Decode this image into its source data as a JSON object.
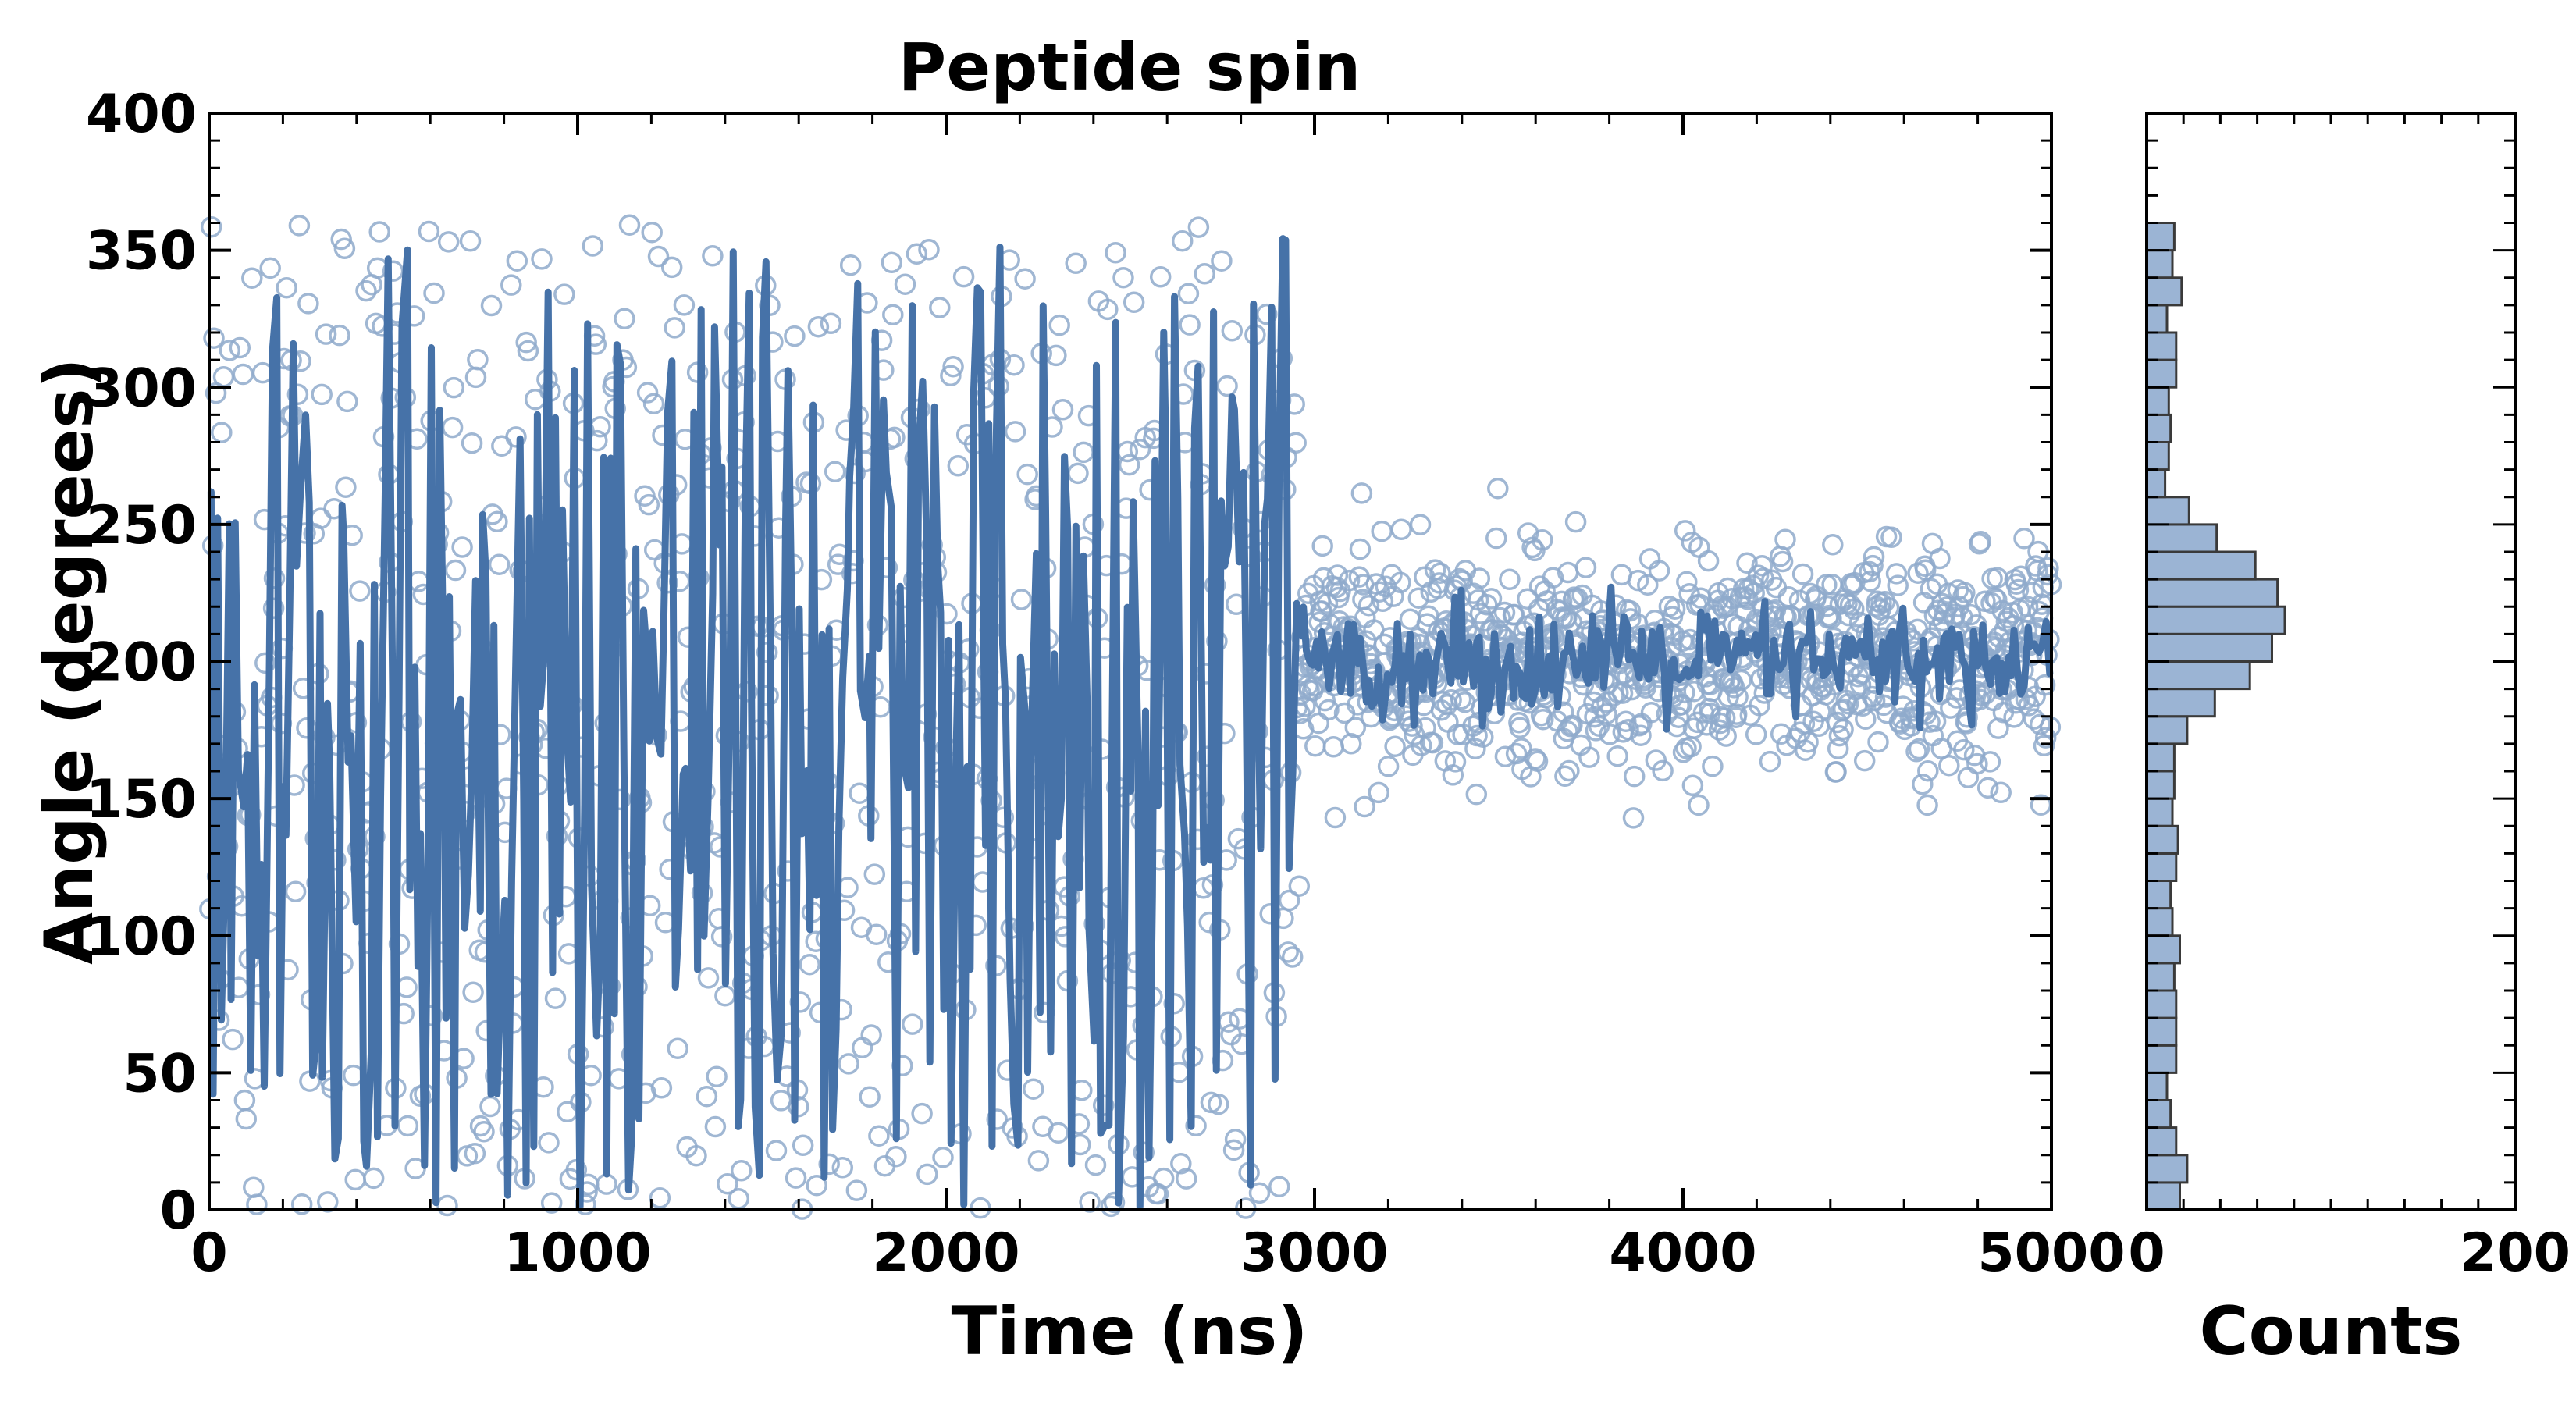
{
  "chart_data": [
    {
      "type": "scatter",
      "title": "Peptide spin",
      "xlabel": "Time (ns)",
      "ylabel": "Angle (degrees)",
      "xlim": [
        0,
        5000
      ],
      "ylim": [
        0,
        400
      ],
      "xticks": [
        0,
        1000,
        2000,
        3000,
        4000,
        5000
      ],
      "yticks": [
        0,
        50,
        100,
        150,
        200,
        250,
        300,
        350,
        400
      ],
      "grid": false,
      "series": [
        {
          "kind": "scatter",
          "marker": "open-circle",
          "color": "#8faacb",
          "regimes": [
            {
              "x_range": [
                0,
                2960
              ],
              "points": 720,
              "distribution": "uniform",
              "y_range": [
                0,
                360
              ]
            },
            {
              "x_range": [
                2960,
                5000
              ],
              "points": 900,
              "distribution": "normal",
              "y_mean": 200,
              "y_sd": 20
            }
          ]
        },
        {
          "kind": "line",
          "color": "#4672a8",
          "regimes": [
            {
              "x_range": [
                0,
                2960
              ],
              "points": 300,
              "distribution": "uniform",
              "y_range": [
                0,
                355
              ]
            },
            {
              "x_range": [
                2960,
                5000
              ],
              "points": 240,
              "distribution": "normal",
              "y_mean": 200,
              "y_sd": 10
            }
          ]
        }
      ]
    },
    {
      "type": "bar",
      "orientation": "horizontal",
      "xlabel": "Counts",
      "xlim": [
        0,
        200
      ],
      "ylim": [
        0,
        400
      ],
      "xticks": [
        0,
        200
      ],
      "bin_width": 10,
      "bar_color": "#9bb4d4",
      "edge_color": "#3a3a3a",
      "bins": [
        0,
        10,
        20,
        30,
        40,
        50,
        60,
        70,
        80,
        90,
        100,
        110,
        120,
        130,
        140,
        150,
        160,
        170,
        180,
        190,
        200,
        210,
        220,
        230,
        240,
        250,
        260,
        270,
        280,
        290,
        300,
        310,
        320,
        330,
        340,
        350
      ],
      "values": [
        18,
        22,
        16,
        13,
        11,
        16,
        16,
        16,
        15,
        18,
        14,
        13,
        16,
        17,
        14,
        15,
        15,
        22,
        37,
        56,
        68,
        75,
        71,
        59,
        38,
        23,
        10,
        12,
        13,
        12,
        16,
        16,
        11,
        19,
        14,
        15
      ]
    }
  ]
}
